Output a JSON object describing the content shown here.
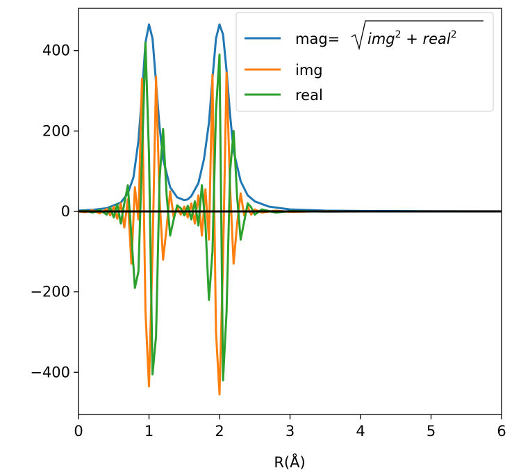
{
  "chart_data": {
    "type": "line",
    "xlabel": "R(Å)",
    "ylabel": "",
    "title": "",
    "xlim": [
      0,
      6
    ],
    "ylim": [
      -505,
      505
    ],
    "xticks": [
      0,
      1,
      2,
      3,
      4,
      5,
      6
    ],
    "xtick_labels": [
      "0",
      "1",
      "2",
      "3",
      "4",
      "5",
      "6"
    ],
    "yticks": [
      -400,
      -200,
      0,
      200,
      400
    ],
    "ytick_labels": [
      "−400",
      "−200",
      "0",
      "200",
      "400"
    ],
    "grid": false,
    "legend_position": "top-right",
    "reference_line": {
      "y": 0,
      "color": "#000000"
    },
    "series": [
      {
        "name": "mag",
        "legend_label": {
          "prefix": "mag=",
          "radicand": [
            "img",
            "2",
            " + ",
            "real",
            "2"
          ]
        },
        "color": "#1f77b4",
        "points": [
          [
            0,
            2
          ],
          [
            0.2,
            4
          ],
          [
            0.4,
            8
          ],
          [
            0.6,
            22
          ],
          [
            0.7,
            45
          ],
          [
            0.78,
            85
          ],
          [
            0.85,
            175
          ],
          [
            0.9,
            290
          ],
          [
            0.95,
            420
          ],
          [
            1.0,
            465
          ],
          [
            1.05,
            430
          ],
          [
            1.1,
            320
          ],
          [
            1.15,
            210
          ],
          [
            1.2,
            130
          ],
          [
            1.3,
            60
          ],
          [
            1.4,
            35
          ],
          [
            1.5,
            28
          ],
          [
            1.55,
            30
          ],
          [
            1.6,
            38
          ],
          [
            1.7,
            70
          ],
          [
            1.78,
            130
          ],
          [
            1.85,
            220
          ],
          [
            1.9,
            330
          ],
          [
            1.95,
            430
          ],
          [
            2.0,
            465
          ],
          [
            2.05,
            440
          ],
          [
            2.1,
            350
          ],
          [
            2.15,
            240
          ],
          [
            2.2,
            150
          ],
          [
            2.3,
            75
          ],
          [
            2.4,
            40
          ],
          [
            2.5,
            25
          ],
          [
            2.7,
            12
          ],
          [
            3.0,
            5
          ],
          [
            3.5,
            2
          ],
          [
            4,
            1
          ],
          [
            5,
            0.5
          ],
          [
            6,
            0.3
          ]
        ]
      },
      {
        "name": "img",
        "color": "#ff7f0e",
        "points": [
          [
            0,
            0
          ],
          [
            0.1,
            -2
          ],
          [
            0.2,
            3
          ],
          [
            0.3,
            -5
          ],
          [
            0.4,
            6
          ],
          [
            0.45,
            -10
          ],
          [
            0.5,
            12
          ],
          [
            0.55,
            -18
          ],
          [
            0.6,
            20
          ],
          [
            0.65,
            -40
          ],
          [
            0.7,
            30
          ],
          [
            0.75,
            -130
          ],
          [
            0.8,
            60
          ],
          [
            0.85,
            -20
          ],
          [
            0.9,
            330
          ],
          [
            0.95,
            -250
          ],
          [
            1.0,
            -435
          ],
          [
            1.05,
            -100
          ],
          [
            1.1,
            335
          ],
          [
            1.15,
            30
          ],
          [
            1.2,
            -120
          ],
          [
            1.25,
            -40
          ],
          [
            1.3,
            50
          ],
          [
            1.35,
            -15
          ],
          [
            1.4,
            10
          ],
          [
            1.45,
            -8
          ],
          [
            1.5,
            12
          ],
          [
            1.55,
            -15
          ],
          [
            1.6,
            20
          ],
          [
            1.65,
            -30
          ],
          [
            1.7,
            40
          ],
          [
            1.75,
            -60
          ],
          [
            1.8,
            55
          ],
          [
            1.85,
            -70
          ],
          [
            1.9,
            340
          ],
          [
            1.95,
            -300
          ],
          [
            2.0,
            -455
          ],
          [
            2.05,
            -120
          ],
          [
            2.1,
            345
          ],
          [
            2.15,
            60
          ],
          [
            2.2,
            -130
          ],
          [
            2.25,
            -30
          ],
          [
            2.3,
            45
          ],
          [
            2.35,
            -10
          ],
          [
            2.4,
            12
          ],
          [
            2.45,
            -8
          ],
          [
            2.5,
            5
          ],
          [
            2.6,
            -3
          ],
          [
            2.8,
            2
          ],
          [
            3.0,
            -1
          ],
          [
            3.5,
            0.5
          ],
          [
            4,
            0
          ],
          [
            6,
            0
          ]
        ]
      },
      {
        "name": "real",
        "color": "#2ca02c",
        "points": [
          [
            0,
            0
          ],
          [
            0.1,
            2
          ],
          [
            0.2,
            -3
          ],
          [
            0.3,
            4
          ],
          [
            0.4,
            -8
          ],
          [
            0.45,
            10
          ],
          [
            0.5,
            -15
          ],
          [
            0.55,
            18
          ],
          [
            0.6,
            -30
          ],
          [
            0.65,
            20
          ],
          [
            0.7,
            65
          ],
          [
            0.75,
            -60
          ],
          [
            0.8,
            -190
          ],
          [
            0.85,
            -150
          ],
          [
            0.9,
            130
          ],
          [
            0.95,
            420
          ],
          [
            1.0,
            140
          ],
          [
            1.05,
            -405
          ],
          [
            1.1,
            -310
          ],
          [
            1.15,
            80
          ],
          [
            1.2,
            205
          ],
          [
            1.25,
            40
          ],
          [
            1.3,
            -60
          ],
          [
            1.35,
            -20
          ],
          [
            1.4,
            15
          ],
          [
            1.45,
            8
          ],
          [
            1.5,
            -10
          ],
          [
            1.55,
            14
          ],
          [
            1.6,
            -20
          ],
          [
            1.65,
            25
          ],
          [
            1.7,
            -35
          ],
          [
            1.75,
            65
          ],
          [
            1.8,
            -30
          ],
          [
            1.85,
            -220
          ],
          [
            1.9,
            -100
          ],
          [
            1.95,
            250
          ],
          [
            2.0,
            390
          ],
          [
            2.05,
            -420
          ],
          [
            2.1,
            -250
          ],
          [
            2.15,
            100
          ],
          [
            2.2,
            200
          ],
          [
            2.25,
            35
          ],
          [
            2.3,
            -70
          ],
          [
            2.35,
            -25
          ],
          [
            2.4,
            20
          ],
          [
            2.45,
            10
          ],
          [
            2.5,
            -8
          ],
          [
            2.6,
            5
          ],
          [
            2.8,
            -3
          ],
          [
            3.0,
            1
          ],
          [
            3.5,
            -0.5
          ],
          [
            4,
            0
          ],
          [
            6,
            0
          ]
        ]
      }
    ]
  }
}
